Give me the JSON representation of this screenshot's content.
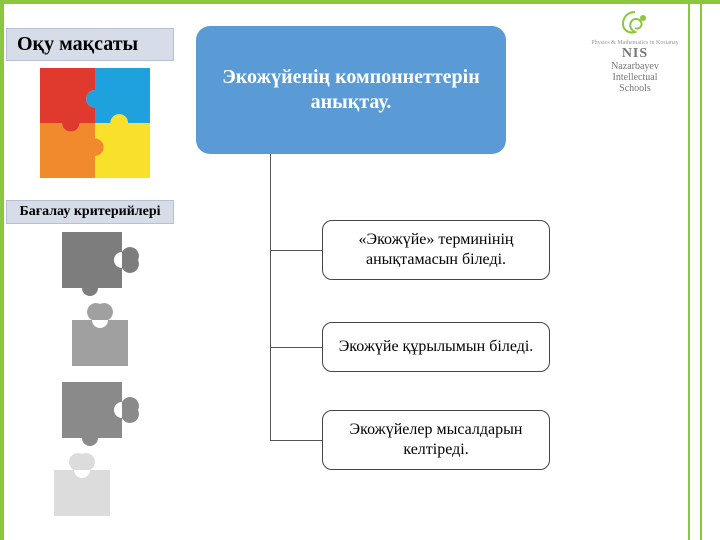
{
  "colors": {
    "accent": "#8cc63f",
    "label_bg": "#d6dce8",
    "label_border": "#b8c0d4",
    "main_bg": "#5b9bd5",
    "sub_border": "#444444",
    "connector": "#555555",
    "puzzle": {
      "red": "#e03a2f",
      "blue": "#1ea1dc",
      "orange": "#f08a2c",
      "yellow": "#f9e02a",
      "gray1": "#7d7d7d",
      "gray2": "#a0a0a0",
      "gray3": "#8a8a8a",
      "gray4": "#dcdcdc"
    }
  },
  "logo": {
    "line1": "NIS",
    "line2": "Nazarbayev",
    "line3": "Intellectual",
    "line4": "Schools",
    "small": "Physics & Mathematics in Kostanay"
  },
  "labels": {
    "objective": "Оқу мақсаты",
    "criteria": "Бағалау критерийлері"
  },
  "main_title": "Экожүйенің компоннеттерін анықтау.",
  "criteria_items": [
    "«Экожүйе» терминінің анықтамасын біледі.",
    "Экожүйе құрылымын біледі.",
    "Экожүйелер мысалдарын келтіреді."
  ],
  "layout": {
    "sub_box_tops": [
      220,
      322,
      410
    ],
    "sub_box_heights": [
      60,
      50,
      60
    ],
    "connector_h_tops": [
      250,
      347,
      440
    ]
  }
}
